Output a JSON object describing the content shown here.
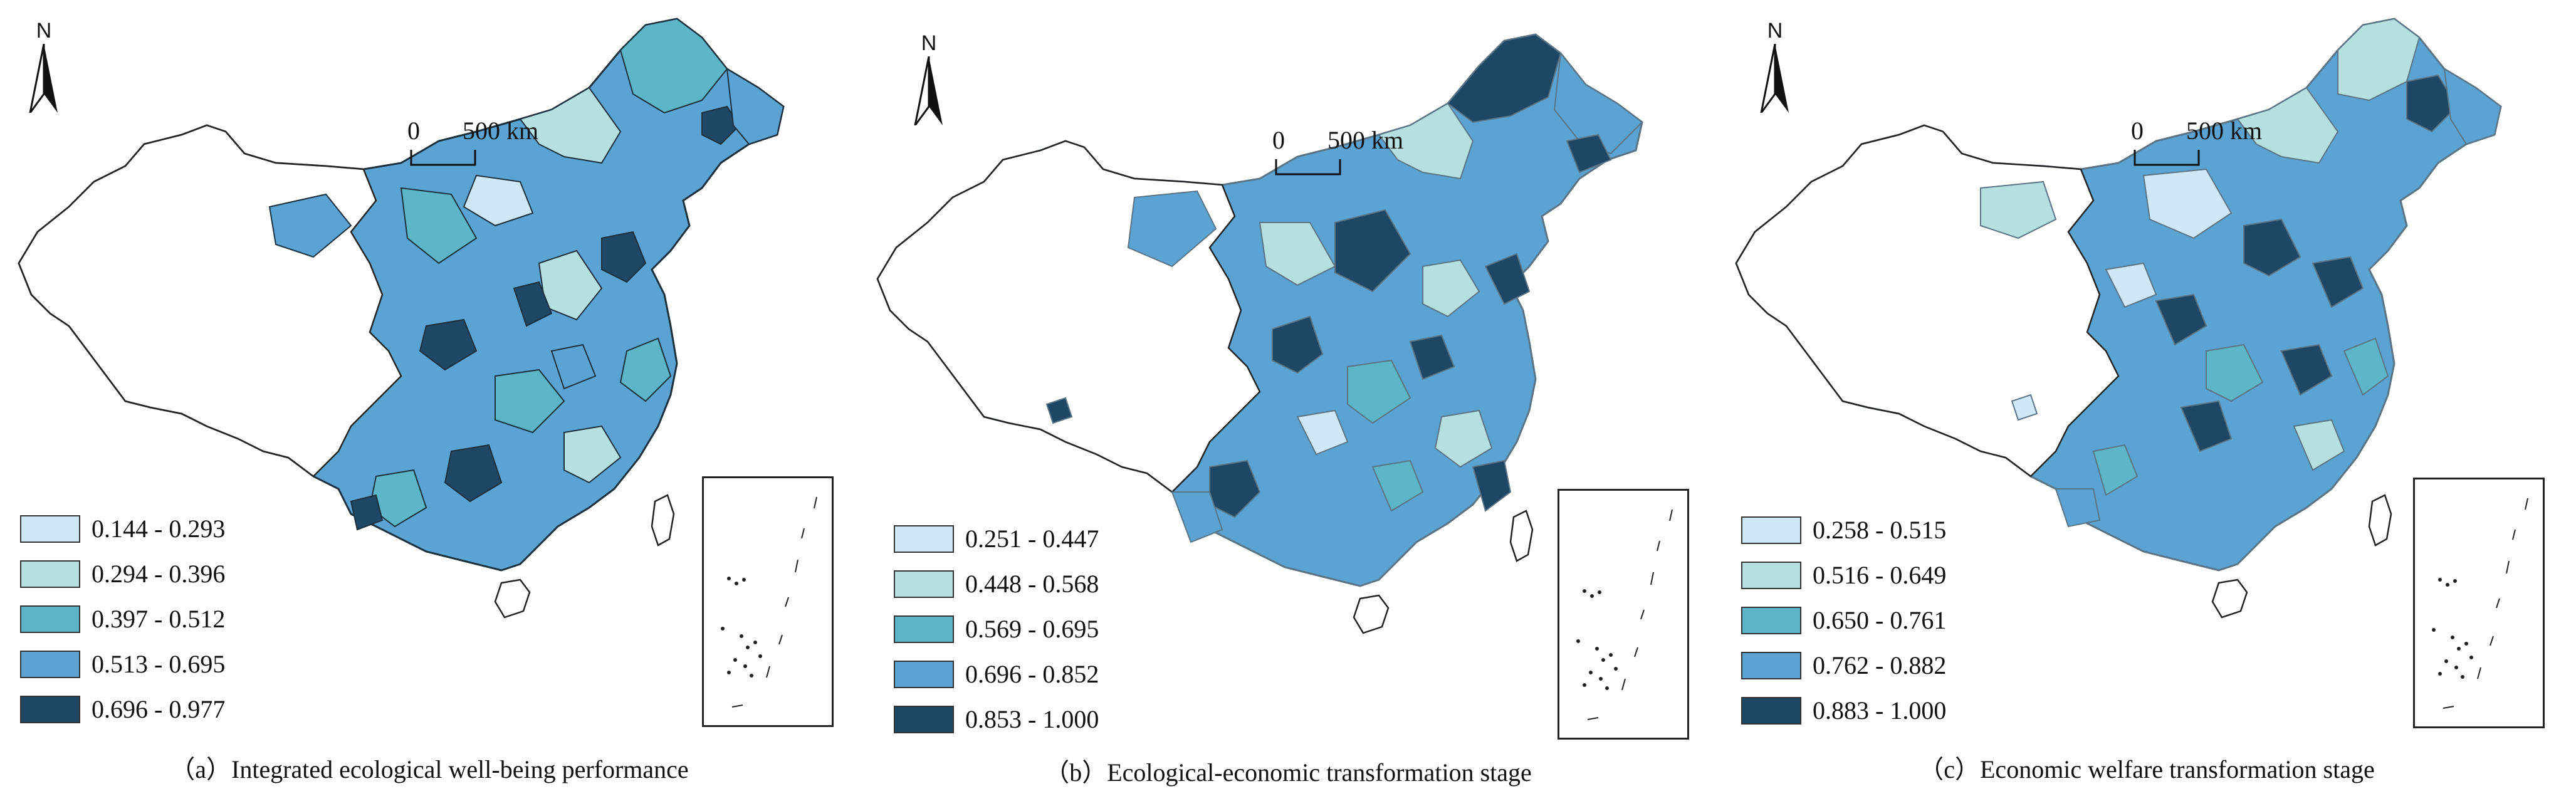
{
  "north_label": "N",
  "scale": {
    "zero": "0",
    "distance": "500 km"
  },
  "panels": [
    {
      "caption": "（a）Integrated ecological well-being performance",
      "legend": [
        {
          "label": "0.144 - 0.293",
          "color": "#cfe8f7"
        },
        {
          "label": "0.294 - 0.396",
          "color": "#b6e0df"
        },
        {
          "label": "0.397 - 0.512",
          "color": "#5cb6c7"
        },
        {
          "label": "0.513 - 0.695",
          "color": "#5aa3d3"
        },
        {
          "label": "0.696 - 0.977",
          "color": "#1e4766"
        }
      ]
    },
    {
      "caption": "（b）Ecological-economic transformation stage",
      "legend": [
        {
          "label": "0.251 - 0.447",
          "color": "#cfe8f7"
        },
        {
          "label": "0.448 - 0.568",
          "color": "#b6e0df"
        },
        {
          "label": "0.569 - 0.695",
          "color": "#5cb6c7"
        },
        {
          "label": "0.696 - 0.852",
          "color": "#5aa3d3"
        },
        {
          "label": "0.853 - 1.000",
          "color": "#1e4766"
        }
      ]
    },
    {
      "caption": "（c）Economic welfare transformation stage",
      "legend": [
        {
          "label": "0.258 - 0.515",
          "color": "#cfe8f7"
        },
        {
          "label": "0.516 - 0.649",
          "color": "#b6e0df"
        },
        {
          "label": "0.650 - 0.761",
          "color": "#5cb6c7"
        },
        {
          "label": "0.762 - 0.882",
          "color": "#5aa3d3"
        },
        {
          "label": "0.883 - 1.000",
          "color": "#1e4766"
        }
      ]
    }
  ]
}
